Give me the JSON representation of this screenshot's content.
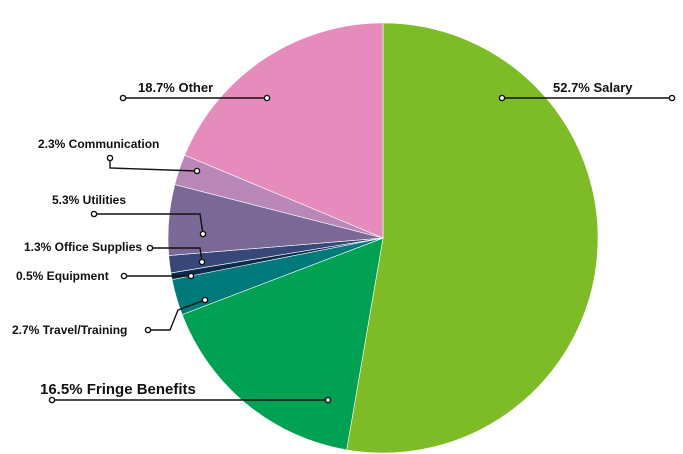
{
  "chart_data": {
    "type": "pie",
    "categories": [
      "Salary",
      "Fringe Benefits",
      "Travel/Training",
      "Equipment",
      "Office Supplies",
      "Utilities",
      "Communication",
      "Other"
    ],
    "values": [
      52.7,
      16.5,
      2.7,
      0.5,
      1.3,
      5.3,
      2.3,
      18.7
    ],
    "labels": [
      "52.7% Salary",
      "16.5% Fringe Benefits",
      "2.7% Travel/Training",
      "0.5% Equipment",
      "1.3% Office Supplies",
      "5.3% Utilities",
      "2.3% Communication",
      "18.7% Other"
    ],
    "colors": [
      "#7dbb27",
      "#00a152",
      "#00797a",
      "#0c2b4d",
      "#374878",
      "#7a6996",
      "#b988b8",
      "#e68cbc"
    ],
    "start_angle_deg": 0,
    "direction": "clockwise",
    "legend": "none"
  }
}
